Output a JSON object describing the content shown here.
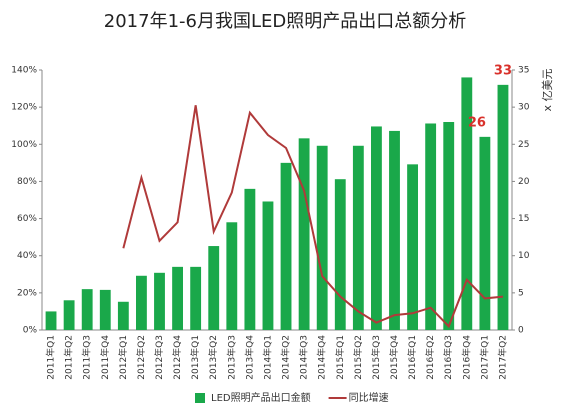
{
  "chart_data": {
    "type": "bar-line",
    "title": "2017年1-6月我国LED照明产品出口总额分析",
    "y2_label": "x 亿美元",
    "categories": [
      "2011年Q1",
      "2011年Q2",
      "2011年Q3",
      "2011年Q4",
      "2012年Q1",
      "2012年Q2",
      "2012年Q3",
      "2012年Q4",
      "2013年Q1",
      "2013年Q2",
      "2013年Q3",
      "2013年Q4",
      "2014年Q1",
      "2014年Q2",
      "2014年Q3",
      "2014年Q4",
      "2015年Q1",
      "2015年Q2",
      "2015年Q3",
      "2015年Q4",
      "2016年Q1",
      "2016年Q2",
      "2016年Q3",
      "2016年Q4",
      "2017年Q1",
      "2017年Q2"
    ],
    "series": [
      {
        "name": "LED照明产品出口金额",
        "type": "bar",
        "axis": "y2",
        "color": "#1aa84a",
        "values": [
          2.5,
          4,
          5.5,
          5.4,
          3.8,
          7.3,
          7.7,
          8.5,
          8.5,
          11.3,
          14.5,
          19,
          17.3,
          22.5,
          25.8,
          24.8,
          20.3,
          24.8,
          27.4,
          26.8,
          22.3,
          27.8,
          28,
          34,
          26,
          33
        ],
        "value_labels": [
          null,
          null,
          null,
          null,
          null,
          null,
          null,
          null,
          null,
          null,
          null,
          null,
          null,
          null,
          null,
          null,
          null,
          null,
          null,
          null,
          null,
          null,
          null,
          null,
          "26",
          "33"
        ]
      },
      {
        "name": "同比增速",
        "type": "line",
        "axis": "y",
        "color": "#b03a3a",
        "values": [
          null,
          null,
          null,
          null,
          44,
          82,
          48,
          58,
          121,
          53,
          74,
          117,
          105,
          98,
          75,
          29,
          18,
          10,
          4,
          8,
          9,
          12,
          2,
          27,
          17,
          18
        ]
      }
    ],
    "ylim": [
      0,
      140
    ],
    "yticks": [
      {
        "value": 0,
        "label": "0%"
      },
      {
        "value": 20,
        "label": "20%"
      },
      {
        "value": 40,
        "label": "40%"
      },
      {
        "value": 60,
        "label": "60%"
      },
      {
        "value": 80,
        "label": "80%"
      },
      {
        "value": 100,
        "label": "100%"
      },
      {
        "value": 120,
        "label": "120%"
      },
      {
        "value": 140,
        "label": "140%"
      }
    ],
    "y2lim": [
      0,
      35
    ],
    "y2ticks": [
      0,
      5,
      10,
      15,
      20,
      25,
      30,
      35
    ],
    "legend": "bottom"
  }
}
